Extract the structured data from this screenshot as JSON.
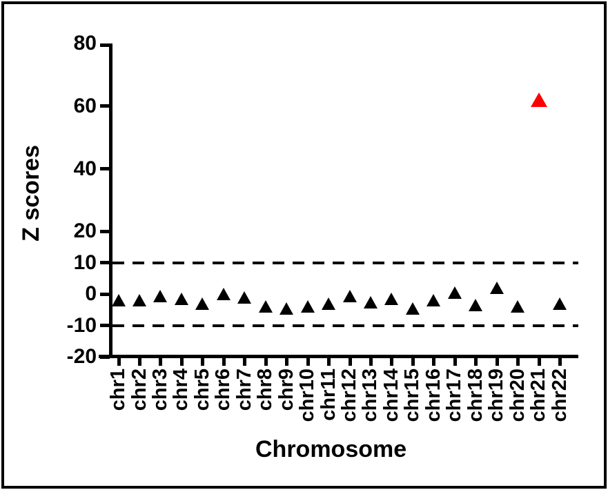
{
  "figure": {
    "background_color": "#ffffff",
    "border_color": "#000000"
  },
  "chart_data": {
    "type": "scatter",
    "marker_shape": "triangle",
    "title": "",
    "xlabel": "Chromosome",
    "ylabel": "Z scores",
    "categories": [
      "chr1",
      "chr2",
      "chr3",
      "chr4",
      "chr5",
      "chr6",
      "chr7",
      "chr8",
      "chr9",
      "chr10",
      "chr11",
      "chr12",
      "chr13",
      "chr14",
      "chr15",
      "chr16",
      "chr17",
      "chr18",
      "chr19",
      "chr20",
      "chr21",
      "chr22"
    ],
    "values": [
      -2,
      -2,
      -0.5,
      -1.5,
      -3,
      0,
      -1,
      -4,
      -4.5,
      -4,
      -3,
      -0.5,
      -2.5,
      -1.5,
      -4.5,
      -2,
      0.5,
      -3.5,
      2,
      -4,
      62,
      -3
    ],
    "default_point_color": "#000000",
    "highlight": {
      "category": "chr21",
      "value": 62,
      "color": "#ff0000"
    },
    "y_ticks": [
      80,
      60,
      40,
      20,
      10,
      0,
      -10,
      -20
    ],
    "ylim": [
      -20,
      80
    ],
    "grid": false,
    "legend": null,
    "threshold_lines": [
      {
        "value": 10,
        "style": "dashed",
        "color": "#000000"
      },
      {
        "value": -10,
        "style": "dashed",
        "color": "#000000"
      }
    ]
  }
}
